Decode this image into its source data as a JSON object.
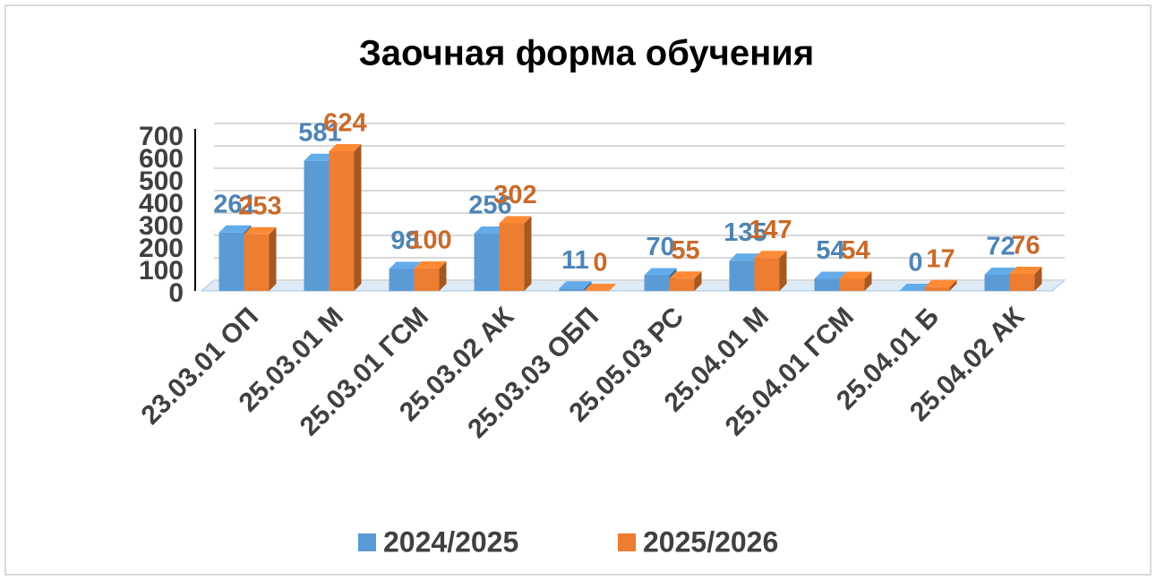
{
  "chart_data": {
    "type": "bar3d",
    "title": "Заочная форма обучения",
    "categories": [
      "23.03.01 ОП",
      "25.03.01 М",
      "25.03.01 ГСМ",
      "25.03.02 АК",
      "25.03.03 ОБП",
      "25.05.03 РС",
      "25.04.01 М",
      "25.04.01 ГСМ",
      "25.04.01 Б",
      "25.04.02 АК"
    ],
    "series": [
      {
        "name": "2024/2025",
        "color": "#5b9bd5",
        "values": [
          261,
          581,
          98,
          256,
          11,
          70,
          135,
          54,
          0,
          72
        ]
      },
      {
        "name": "2025/2026",
        "color": "#ed7d31",
        "values": [
          253,
          624,
          100,
          302,
          0,
          55,
          147,
          54,
          17,
          76
        ]
      }
    ],
    "ylim": [
      0,
      700
    ],
    "yticks": [
      0,
      100,
      200,
      300,
      400,
      500,
      600,
      700
    ],
    "grid": true,
    "legend": "bottom"
  }
}
